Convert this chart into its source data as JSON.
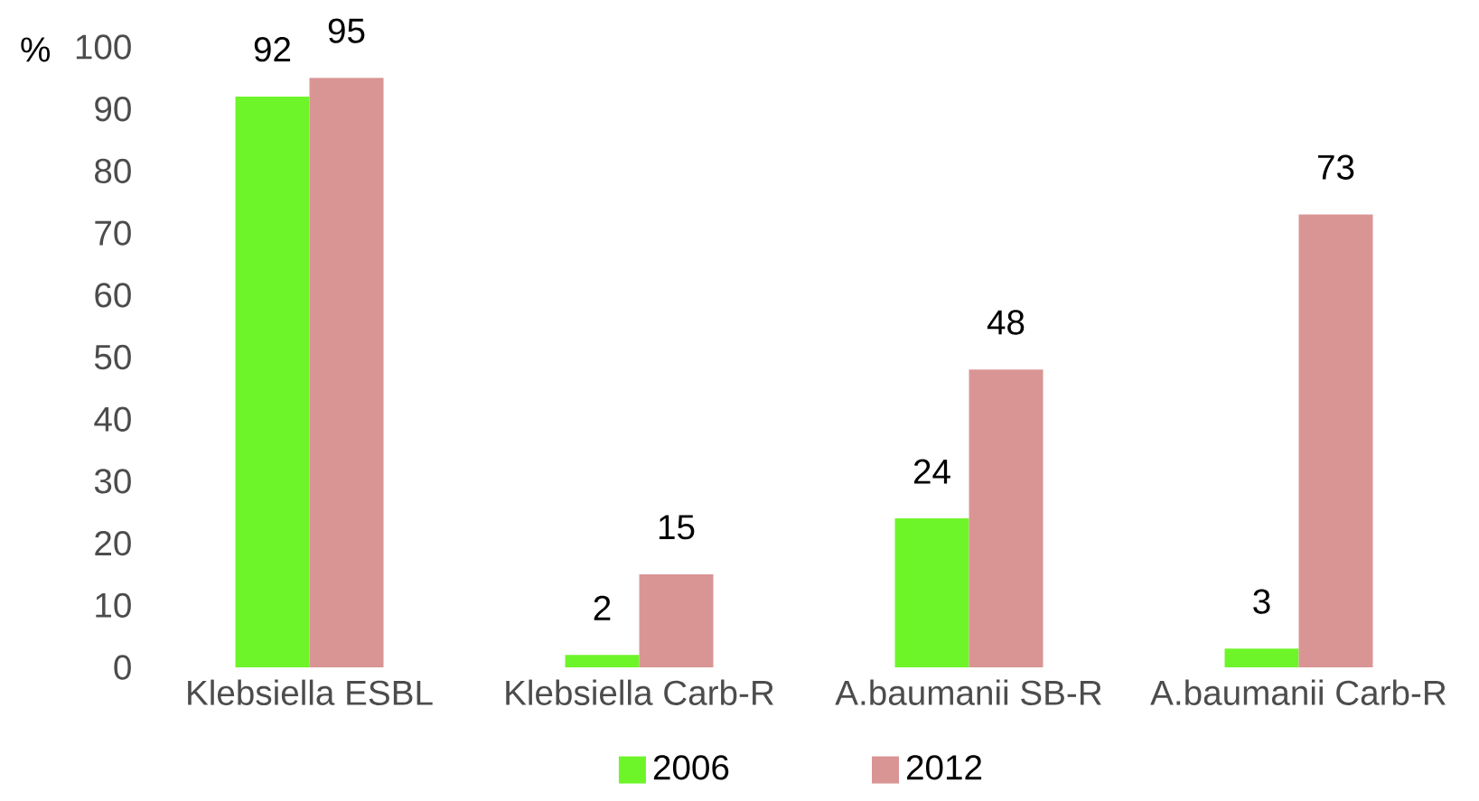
{
  "chart_data": {
    "type": "bar",
    "ylabel": "%",
    "categories": [
      "Klebsiella ESBL",
      "Klebsiella Carb-R",
      "A.baumanii SB-R",
      "A.baumanii Carb-R"
    ],
    "series": [
      {
        "name": "2006",
        "color": "#6ef52a",
        "values": [
          92,
          2,
          24,
          3
        ]
      },
      {
        "name": "2012",
        "color": "#d99594",
        "values": [
          95,
          15,
          48,
          73
        ]
      }
    ],
    "ylim": [
      0,
      100
    ],
    "yticks": [
      0,
      10,
      20,
      30,
      40,
      50,
      60,
      70,
      80,
      90,
      100
    ],
    "data_labels": true,
    "legend": "bottom",
    "grid": false
  }
}
